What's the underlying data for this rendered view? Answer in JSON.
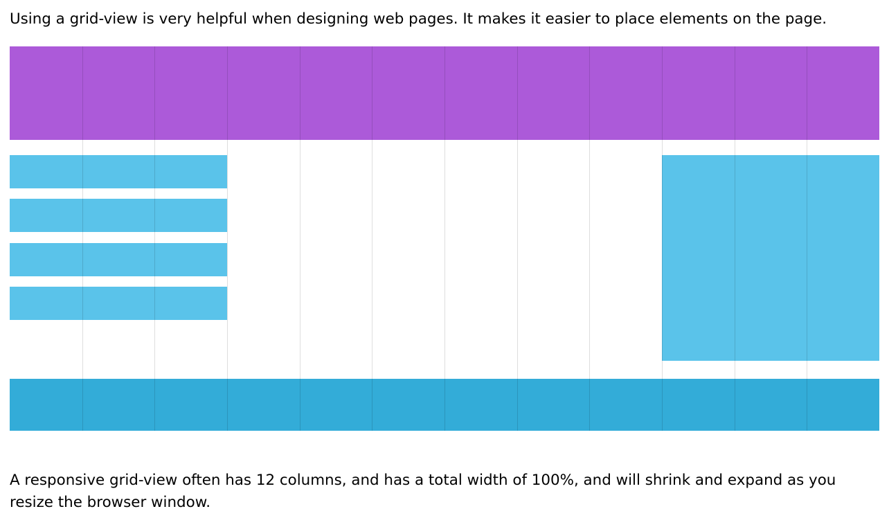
{
  "intro_text": "Using a grid-view is very helpful when designing web pages. It makes it easier to place elements on the page.",
  "outro_text": "A responsive grid-view often has 12 columns, and has a total width of 100%, and will shrink and expand as you resize the browser window.",
  "grid": {
    "columns": 12,
    "colors": {
      "header": "#ac5ad9",
      "menu": "#5ac3ea",
      "aside": "#5ac3ea",
      "footer": "#33acd8",
      "column_line": "#dddddd"
    },
    "blocks": [
      {
        "role": "header",
        "start_column": 1,
        "span": 12
      },
      {
        "role": "menu-item-1",
        "start_column": 1,
        "span": 3
      },
      {
        "role": "menu-item-2",
        "start_column": 1,
        "span": 3
      },
      {
        "role": "menu-item-3",
        "start_column": 1,
        "span": 3
      },
      {
        "role": "menu-item-4",
        "start_column": 1,
        "span": 3
      },
      {
        "role": "aside",
        "start_column": 10,
        "span": 3
      },
      {
        "role": "footer",
        "start_column": 1,
        "span": 12
      }
    ]
  }
}
